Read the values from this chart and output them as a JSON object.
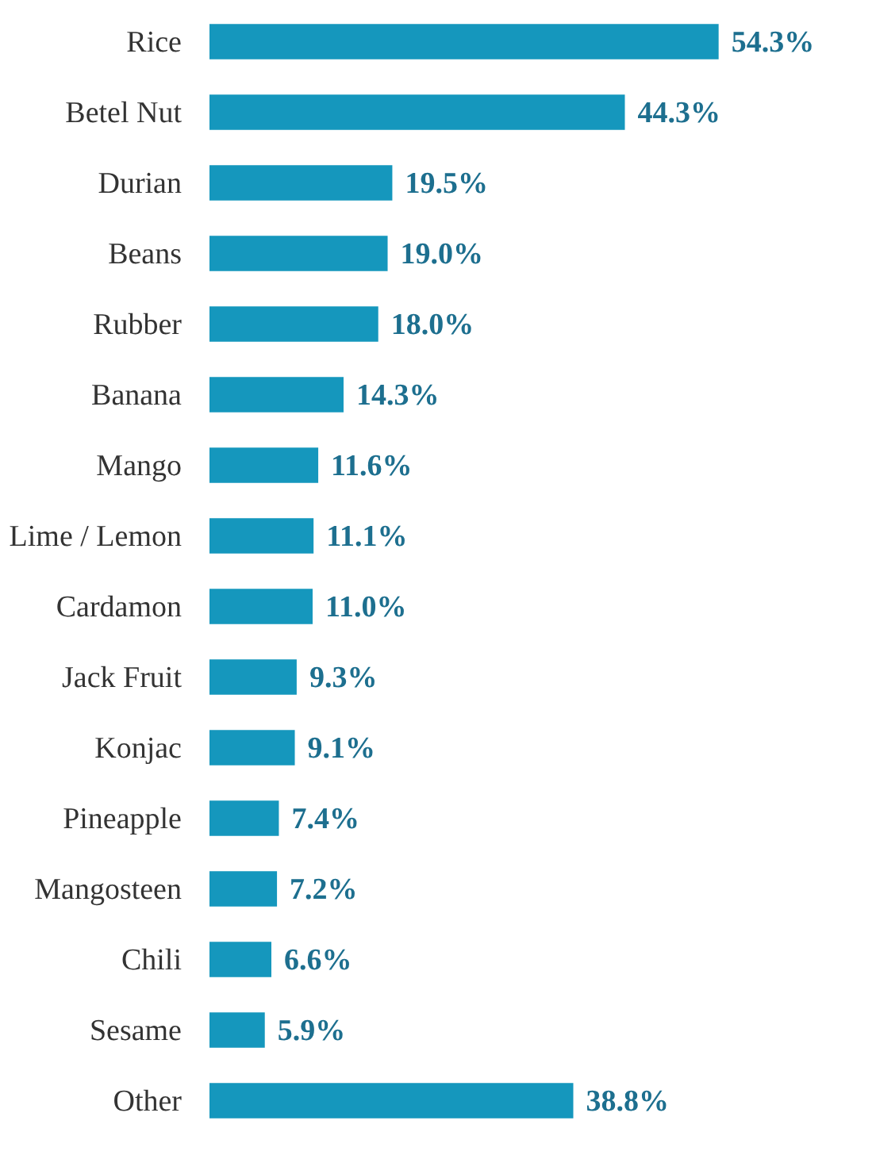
{
  "chart_data": {
    "type": "bar",
    "orientation": "horizontal",
    "categories": [
      "Rice",
      "Betel Nut",
      "Durian",
      "Beans",
      "Rubber",
      "Banana",
      "Mango",
      "Lime / Lemon",
      "Cardamon",
      "Jack Fruit",
      "Konjac",
      "Pineapple",
      "Mangosteen",
      "Chili",
      "Sesame",
      "Other"
    ],
    "values": [
      54.3,
      44.3,
      19.5,
      19.0,
      18.0,
      14.3,
      11.6,
      11.1,
      11.0,
      9.3,
      9.1,
      7.4,
      7.2,
      6.6,
      5.9,
      38.8
    ],
    "value_labels": [
      "54.3%",
      "44.3%",
      "19.5%",
      "19.0%",
      "18.0%",
      "14.3%",
      "11.6%",
      "11.1%",
      "11.0%",
      "9.3%",
      "9.1%",
      "7.4%",
      "7.2%",
      "6.6%",
      "5.9%",
      "38.8%"
    ],
    "color": "#1597bd"
  }
}
